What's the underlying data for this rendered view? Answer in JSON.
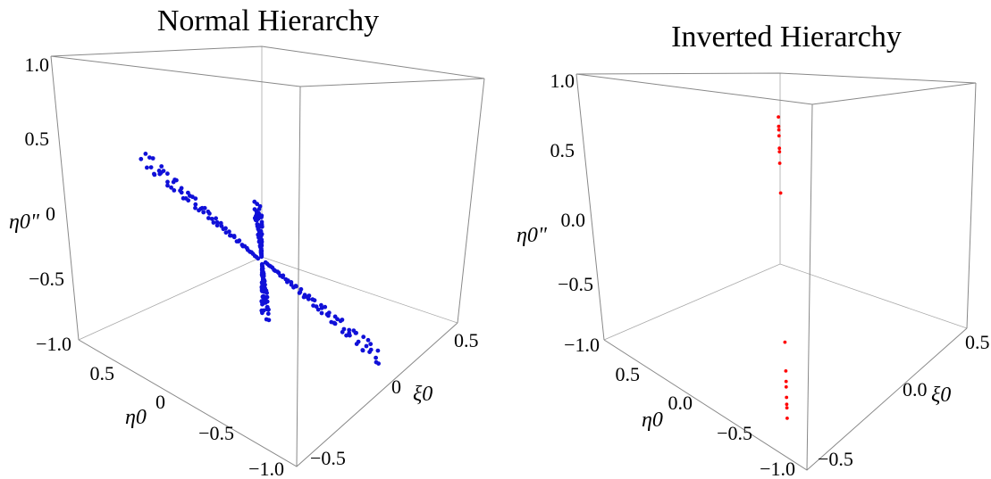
{
  "chart_data": [
    {
      "type": "scatter",
      "title": "Normal Hierarchy",
      "axes": {
        "x_label": "ξ0",
        "y_label": "η0",
        "z_label": "η0\"",
        "x_ticks": [
          "0.5",
          "0",
          "−0.5"
        ],
        "y_ticks": [
          "0.5",
          "0",
          "−0.5",
          "−1.0"
        ],
        "z_ticks": [
          "1.0",
          "0.5",
          "0",
          "−0.5",
          "−1.0"
        ]
      },
      "point_color": "#1010d8",
      "regions": [
        {
          "name": "diagonal-upper",
          "from": [
            0.02,
            0.02,
            0.02
          ],
          "to": [
            0.62,
            0.62,
            1.0
          ],
          "count": 70
        },
        {
          "name": "diagonal-lower",
          "from": [
            -0.02,
            -0.02,
            -0.02
          ],
          "to": [
            -0.62,
            -0.62,
            -0.95
          ],
          "count": 70
        },
        {
          "name": "sheet-right",
          "from": [
            0.05,
            -0.05,
            0.0
          ],
          "to": [
            0.7,
            -0.7,
            0.0
          ],
          "count": 70
        },
        {
          "name": "sheet-left",
          "from": [
            -0.05,
            0.05,
            0.0
          ],
          "to": [
            -0.7,
            0.7,
            0.0
          ],
          "count": 70
        }
      ],
      "grid": false,
      "box": true
    },
    {
      "type": "scatter",
      "title": "Inverted Hierarchy",
      "axes": {
        "x_label": "ξ0",
        "y_label": "η0",
        "z_label": "η0\"",
        "x_ticks": [
          "0.5",
          "0.0",
          "−0.5"
        ],
        "y_ticks": [
          "0.5",
          "0.0",
          "−0.5",
          "−1.0"
        ],
        "z_ticks": [
          "1.0",
          "0.5",
          "0.0",
          "−0.5",
          "−1.0"
        ]
      },
      "point_color": "#ff0000",
      "points": [
        [
          0.82,
          -0.82,
          0.9
        ],
        [
          0.76,
          -0.76,
          0.85
        ],
        [
          0.74,
          -0.74,
          0.83
        ],
        [
          0.7,
          -0.7,
          0.8
        ],
        [
          0.64,
          -0.64,
          0.72
        ],
        [
          0.62,
          -0.62,
          0.7
        ],
        [
          0.56,
          -0.56,
          0.63
        ],
        [
          0.4,
          -0.4,
          0.45
        ],
        [
          -0.4,
          0.4,
          -0.45
        ],
        [
          -0.56,
          0.56,
          -0.62
        ],
        [
          -0.62,
          0.62,
          -0.68
        ],
        [
          -0.64,
          0.64,
          -0.72
        ],
        [
          -0.7,
          0.7,
          -0.78
        ],
        [
          -0.74,
          0.74,
          -0.82
        ],
        [
          -0.76,
          0.76,
          -0.84
        ],
        [
          -0.82,
          0.82,
          -0.9
        ]
      ],
      "grid": false,
      "box": true
    }
  ]
}
